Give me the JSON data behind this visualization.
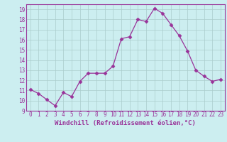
{
  "x": [
    0,
    1,
    2,
    3,
    4,
    5,
    6,
    7,
    8,
    9,
    10,
    11,
    12,
    13,
    14,
    15,
    16,
    17,
    18,
    19,
    20,
    21,
    22,
    23
  ],
  "y": [
    11.1,
    10.7,
    10.1,
    9.5,
    10.8,
    10.4,
    11.9,
    12.7,
    12.7,
    12.7,
    13.4,
    16.1,
    16.3,
    18.0,
    17.8,
    19.1,
    18.6,
    17.5,
    16.4,
    14.9,
    13.0,
    12.4,
    11.9,
    12.1
  ],
  "line_color": "#993399",
  "marker": "D",
  "marker_size": 2.5,
  "bg_color": "#cceef0",
  "grid_color": "#aacccc",
  "xlabel": "Windchill (Refroidissement éolien,°C)",
  "xlabel_color": "#993399",
  "tick_color": "#993399",
  "spine_color": "#993399",
  "ylim": [
    9,
    19.5
  ],
  "xlim": [
    -0.5,
    23.5
  ],
  "yticks": [
    9,
    10,
    11,
    12,
    13,
    14,
    15,
    16,
    17,
    18,
    19
  ],
  "xticks": [
    0,
    1,
    2,
    3,
    4,
    5,
    6,
    7,
    8,
    9,
    10,
    11,
    12,
    13,
    14,
    15,
    16,
    17,
    18,
    19,
    20,
    21,
    22,
    23
  ],
  "tick_fontsize": 5.5,
  "xlabel_fontsize": 6.5
}
